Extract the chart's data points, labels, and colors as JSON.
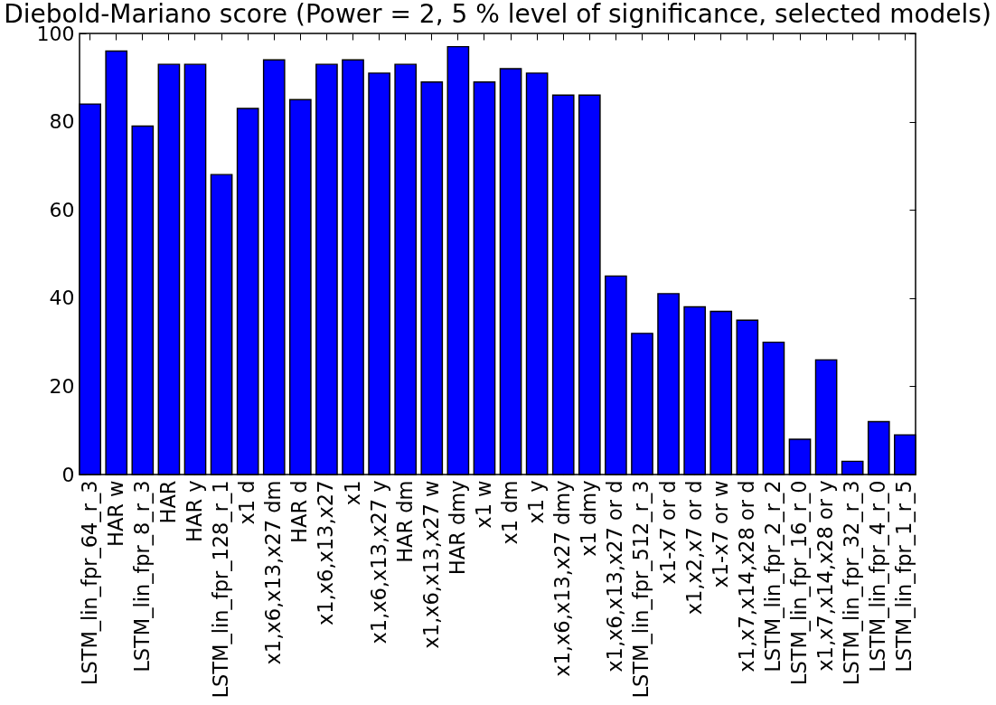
{
  "chart_data": {
    "type": "bar",
    "title": "Diebold-Mariano score (Power = 2, 5 % level of significance, selected models)",
    "categories": [
      "LSTM_lin_fpr_64_r_3",
      "HAR w",
      "LSTM_lin_fpr_8_r_3",
      "HAR",
      "HAR y",
      "LSTM_lin_fpr_128_r_1",
      "x1 d",
      "x1,x6,x13,x27 dm",
      "HAR d",
      "x1,x6,x13,x27",
      "x1",
      "x1,x6,x13,x27 y",
      "HAR dm",
      "x1,x6,x13,x27 w",
      "HAR dmy",
      "x1 w",
      "x1 dm",
      "x1 y",
      "x1,x6,x13,x27 dmy",
      "x1 dmy",
      "x1,x6,x13,x27 or d",
      "LSTM_lin_fpr_512_r_3",
      "x1-x7 or d",
      "x1,x2,x7 or d",
      "x1-x7 or w",
      "x1,x7,x14,x28 or d",
      "LSTM_lin_fpr_2_r_2",
      "LSTM_lin_fpr_16_r_0",
      "x1,x7,x14,x28 or y",
      "LSTM_lin_fpr_32_r_3",
      "LSTM_lin_fpr_4_r_0",
      "LSTM_lin_fpr_1_r_5"
    ],
    "values": [
      84,
      96,
      79,
      93,
      93,
      68,
      83,
      94,
      85,
      93,
      94,
      91,
      93,
      89,
      97,
      89,
      92,
      91,
      86,
      86,
      45,
      32,
      41,
      38,
      37,
      35,
      30,
      8,
      26,
      3,
      12,
      9
    ],
    "color": "#0000ff",
    "ylim": [
      0,
      100
    ],
    "yticks": [
      0,
      20,
      40,
      60,
      80,
      100
    ],
    "grid": false
  }
}
